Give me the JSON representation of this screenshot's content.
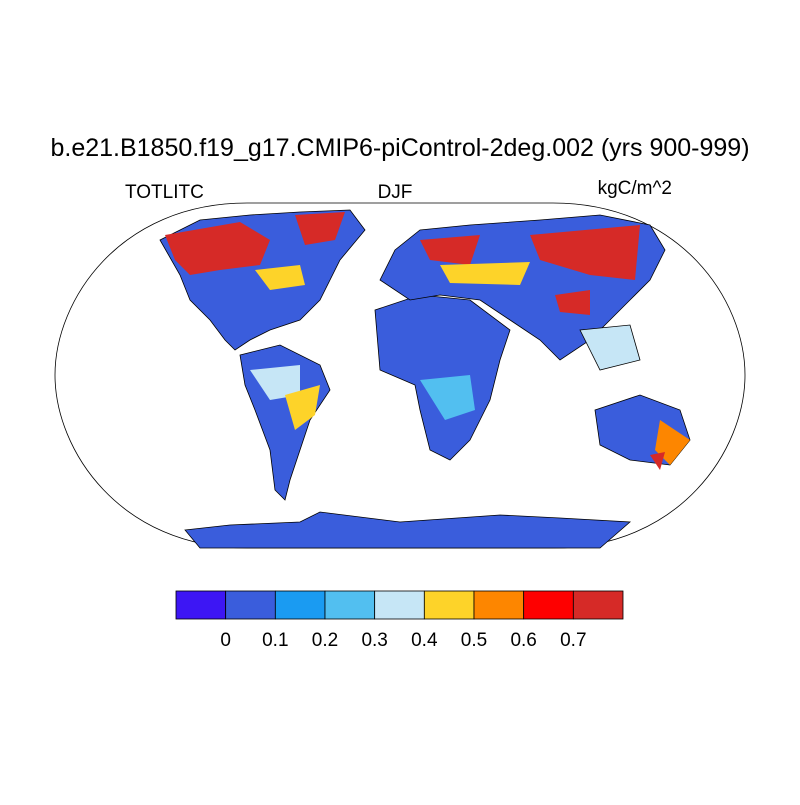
{
  "title": "b.e21.B1850.f19_g17.CMIP6-piControl-2deg.002 (yrs 900-999)",
  "left_string": "TOTLITC",
  "center_string": "DJF",
  "right_string": "kgC/m^2",
  "colorbar": {
    "levels": [
      0,
      0.1,
      0.2,
      0.3,
      0.4,
      0.5,
      0.6,
      0.7
    ],
    "colors": [
      "#3d16f4",
      "#3a5ddc",
      "#1a9bf2",
      "#52bff0",
      "#c6e6f6",
      "#fdd329",
      "#fd8600",
      "#fe0000",
      "#d62a27"
    ]
  }
}
